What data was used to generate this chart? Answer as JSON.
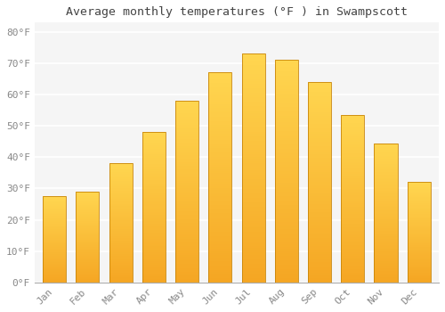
{
  "title": "Average monthly temperatures (°F ) in Swampscott",
  "months": [
    "Jan",
    "Feb",
    "Mar",
    "Apr",
    "May",
    "Jun",
    "Jul",
    "Aug",
    "Sep",
    "Oct",
    "Nov",
    "Dec"
  ],
  "values": [
    27.5,
    29.0,
    38.0,
    48.0,
    58.0,
    67.0,
    73.0,
    71.0,
    64.0,
    53.5,
    44.5,
    32.0
  ],
  "bar_color_bottom": "#F5A623",
  "bar_color_top": "#FFD966",
  "bar_edge_color": "#C8850A",
  "background_color": "#FFFFFF",
  "plot_bg_color": "#F5F5F5",
  "grid_color": "#FFFFFF",
  "text_color": "#888888",
  "title_color": "#444444",
  "ytick_labels": [
    "0°F",
    "10°F",
    "20°F",
    "30°F",
    "40°F",
    "50°F",
    "60°F",
    "70°F",
    "80°F"
  ],
  "ytick_values": [
    0,
    10,
    20,
    30,
    40,
    50,
    60,
    70,
    80
  ],
  "ylim": [
    0,
    83
  ],
  "font_family": "monospace",
  "bar_width": 0.7
}
